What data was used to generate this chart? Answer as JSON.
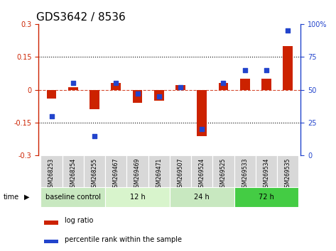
{
  "title": "GDS3642 / 8536",
  "samples": [
    "GSM268253",
    "GSM268254",
    "GSM268255",
    "GSM269467",
    "GSM269469",
    "GSM269471",
    "GSM269507",
    "GSM269524",
    "GSM269525",
    "GSM269533",
    "GSM269534",
    "GSM269535"
  ],
  "log_ratio": [
    -0.04,
    0.01,
    -0.09,
    0.03,
    -0.06,
    -0.05,
    0.02,
    -0.21,
    0.03,
    0.05,
    0.05,
    0.2
  ],
  "percentile_rank": [
    30,
    55,
    15,
    55,
    47,
    45,
    52,
    20,
    55,
    65,
    65,
    95
  ],
  "groups": [
    {
      "label": "baseline control",
      "start": 0,
      "end": 2,
      "color": "#c8e8c0"
    },
    {
      "label": "12 h",
      "start": 3,
      "end": 5,
      "color": "#d8f4cc"
    },
    {
      "label": "24 h",
      "start": 6,
      "end": 8,
      "color": "#c8e8c0"
    },
    {
      "label": "72 h",
      "start": 9,
      "end": 11,
      "color": "#44cc44"
    }
  ],
  "ylim_left": [
    -0.3,
    0.3
  ],
  "ylim_right": [
    0,
    100
  ],
  "yticks_left": [
    -0.3,
    -0.15,
    0,
    0.15,
    0.3
  ],
  "yticks_right": [
    0,
    25,
    50,
    75,
    100
  ],
  "bar_color": "#cc2200",
  "dot_color": "#2244cc",
  "title_fontsize": 11,
  "tick_fontsize": 7,
  "sample_fontsize": 5.5,
  "group_fontsize": 7,
  "legend_fontsize": 7
}
